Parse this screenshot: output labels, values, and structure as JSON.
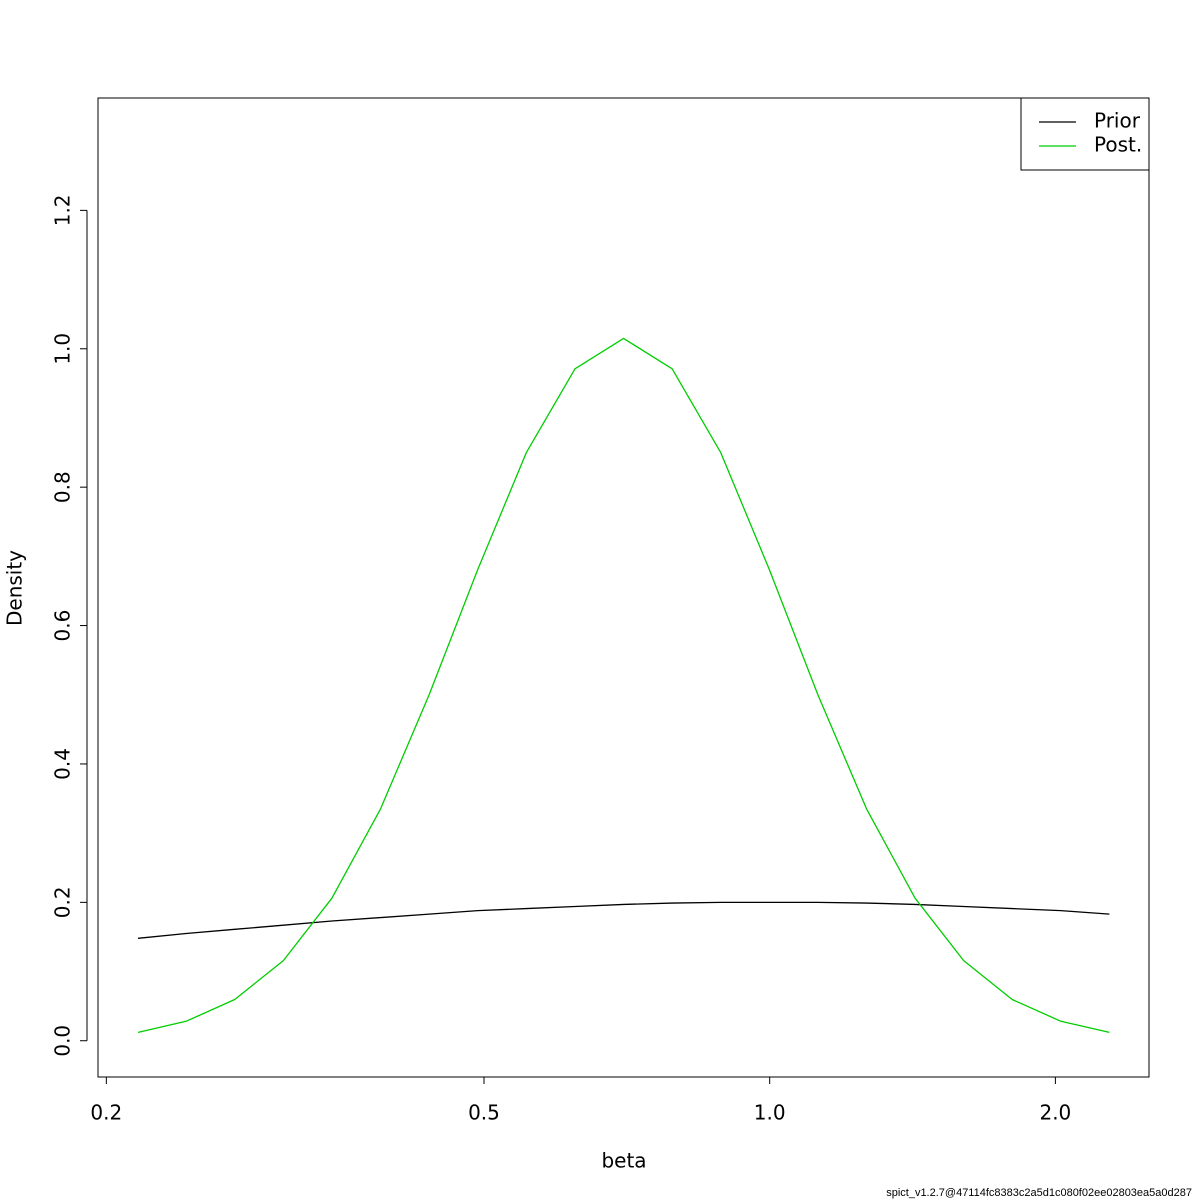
{
  "chart_data": {
    "type": "line",
    "xlabel": "beta",
    "ylabel": "Density",
    "footnote": "spict_v1.2.7@47114fc8383c2a5d1c080f02ee02803ea5a0d287",
    "x": [
      0.216,
      0.2427,
      0.2731,
      0.3073,
      0.3457,
      0.389,
      0.4377,
      0.4925,
      0.5541,
      0.6235,
      0.7015,
      0.7893,
      0.888,
      0.9991,
      1.124,
      1.265,
      1.423,
      1.601,
      1.801,
      2.027,
      2.28
    ],
    "series": [
      {
        "name": "Prior",
        "color": "#000000",
        "values": [
          0.148,
          0.155,
          0.161,
          0.167,
          0.173,
          0.178,
          0.183,
          0.188,
          0.191,
          0.194,
          0.197,
          0.199,
          0.2,
          0.2,
          0.2,
          0.199,
          0.197,
          0.194,
          0.191,
          0.188,
          0.183
        ]
      },
      {
        "name": "Post.",
        "color": "#00cd00",
        "values": [
          0.0121,
          0.0281,
          0.0596,
          0.1158,
          0.206,
          0.335,
          0.5,
          0.681,
          0.85,
          0.971,
          1.015,
          0.971,
          0.85,
          0.681,
          0.5,
          0.335,
          0.206,
          0.1158,
          0.0596,
          0.0281,
          0.0121
        ]
      }
    ],
    "xlog": true,
    "xlim": [
      0.196,
      2.51
    ],
    "xticks": [
      0.2,
      0.5,
      {
        "value": 1,
        "label": "1.0"
      },
      {
        "value": 2,
        "label": "2.0"
      }
    ],
    "ylim": [
      -0.0524,
      1.3624
    ],
    "yticks": [
      {
        "value": 0,
        "label": "0.0"
      },
      0.2,
      0.4,
      0.6,
      0.8,
      {
        "value": 1,
        "label": "1.0"
      },
      1.2
    ],
    "legend": "top-right"
  }
}
